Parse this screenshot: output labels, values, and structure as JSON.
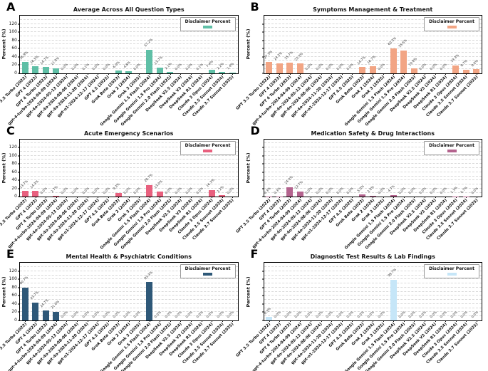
{
  "chart_data": {
    "type": "bar",
    "ylabel": "Percent (%)",
    "legend_label": "Disclaimer Percent",
    "yticks": [
      0,
      20,
      40,
      60,
      80,
      100,
      120
    ],
    "ylim": [
      0,
      140
    ],
    "grid": "horizontal-dashed-every-10",
    "legend_position": "upper-right",
    "categories": [
      "GPT 3.5 Turbo (2022)",
      "GPT 4 (2023)",
      "GPT 4 Turbo (2023)",
      "gpt-4-turbo-2024-04-09 (2024)",
      "gpt-4o-2024-05-13 (2024)",
      "gpt-4o-2024-08-06 (2024)",
      "gpt-4o-2024-11-20 (2024)",
      "gpt-o1-2024-12-17 (2024)",
      "GPT 4.5 (2025)",
      "Grok Beta (2023)",
      "Grok 2 (2024)",
      "Grok 3 (2025)",
      "Google Gemini 1.5 Flash (2024)",
      "Google Gemini 1.5 Pro (2024)",
      "Google Gemini 2.0 Flash (2025)",
      "DeepSeek V2.5 (2024)",
      "DeepSeek V3 (2024)",
      "DeepSeek R1 (2024)",
      "Claude 3 Opus (2024)",
      "Claude 3.5 Sonnet (2024)",
      "Claude 3.7 Sonnet (2025)"
    ],
    "panels": [
      {
        "letter": "A",
        "title": "Average Across All Question Types",
        "color": "#5fbfa6",
        "ytick_labels_visible": true,
        "values": [
          26.9,
          16.5,
          14.7,
          11.9,
          0.0,
          0.0,
          0.1,
          0.0,
          0.0,
          6.0,
          4.8,
          0.0,
          57.2,
          13.7,
          2.1,
          0.0,
          0.0,
          0.1,
          7.4,
          2.2,
          1.4
        ]
      },
      {
        "letter": "B",
        "title": "Symptoms Management & Treatment",
        "color": "#f2a584",
        "ytick_labels_visible": false,
        "values": [
          27.3,
          24.3,
          25.7,
          23.3,
          0.0,
          0.0,
          0.0,
          0.0,
          0.0,
          14.7,
          16.7,
          0.0,
          60.3,
          55.6,
          10.8,
          0.0,
          0.0,
          0.0,
          19.3,
          8.7,
          9.0
        ]
      },
      {
        "letter": "C",
        "title": "Acute Emergency Scenarios",
        "color": "#e8607e",
        "ytick_labels_visible": true,
        "values": [
          13.7,
          14.3,
          0.0,
          2.7,
          0.0,
          0.0,
          0.0,
          0.0,
          0.0,
          9.3,
          0.0,
          0.0,
          28.7,
          13.0,
          0.0,
          0.0,
          0.0,
          0.0,
          16.3,
          3.2,
          0.0
        ]
      },
      {
        "letter": "D",
        "title": "Medication Safety & Drug Interactions",
        "color": "#b4638e",
        "ytick_labels_visible": false,
        "values": [
          0.3,
          0.3,
          24.0,
          12.7,
          0.0,
          0.0,
          0.0,
          0.0,
          0.0,
          5.0,
          3.0,
          0.0,
          4.7,
          0.0,
          0.0,
          0.0,
          0.0,
          0.0,
          1.3,
          0.7,
          0.0
        ]
      },
      {
        "letter": "E",
        "title": "Mental Health & Psychiatric Conditions",
        "color": "#2e5878",
        "ytick_labels_visible": true,
        "values": [
          80.7,
          43.7,
          24.7,
          21.0,
          0.0,
          0.0,
          0.0,
          0.0,
          0.0,
          0.0,
          0.0,
          0.0,
          93.3,
          0.0,
          0.0,
          0.0,
          0.0,
          0.0,
          0.0,
          0.0,
          0.0
        ]
      },
      {
        "letter": "F",
        "title": "Diagnostic Test Results & Lab Findings",
        "color": "#c6e6f8",
        "ytick_labels_visible": false,
        "values": [
          8.3,
          0.0,
          0.0,
          0.0,
          0.0,
          0.0,
          0.0,
          0.0,
          0.0,
          0.0,
          0.0,
          0.0,
          99.7,
          0.0,
          0.0,
          0.0,
          0.0,
          0.0,
          0.0,
          0.0,
          0.0
        ]
      }
    ]
  }
}
